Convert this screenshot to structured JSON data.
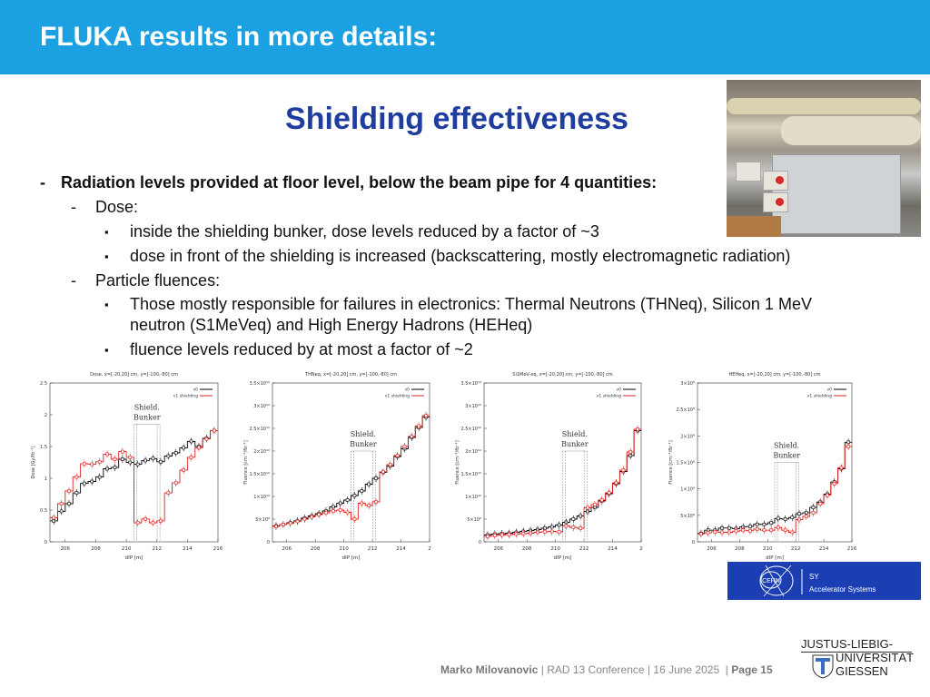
{
  "header": {
    "title": "FLUKA results in more details:",
    "color": "#1ba1e2"
  },
  "subtitle": "Shielding effectiveness",
  "bullets": [
    {
      "level": 1,
      "marker": "-",
      "text": "Radiation levels provided at floor level, below the beam pipe for 4 quantities:"
    },
    {
      "level": 2,
      "marker": "-",
      "text": "Dose:"
    },
    {
      "level": 3,
      "marker": "▪",
      "text": "inside the shielding bunker, dose levels reduced by a factor of ~3"
    },
    {
      "level": 3,
      "marker": "▪",
      "text": "dose in front of the shielding is increased (backscattering, mostly electromagnetic radiation)"
    },
    {
      "level": 2,
      "marker": "-",
      "text": "Particle fluences:"
    },
    {
      "level": 3,
      "marker": "▪",
      "text": "Those mostly responsible for failures in electronics: Thermal Neutrons (THNeq), Silicon 1 MeV"
    },
    {
      "level": 4,
      "marker": "",
      "text": "neutron (S1MeVeq) and High Energy Hadrons (HEHeq)"
    },
    {
      "level": 3,
      "marker": "▪",
      "text": "fluence levels reduced by at most a factor of ~2"
    }
  ],
  "chart_data": [
    {
      "type": "line",
      "title": "Dose, x=[-20,20] cm, y=[-100,-80] cm",
      "xlabel": "dIP [m]",
      "ylabel": "Dose [Gy/fb⁻¹]",
      "xlim": [
        205,
        216
      ],
      "ylim": [
        0,
        2.5
      ],
      "yticks": [
        0,
        0.5,
        1,
        1.5,
        2,
        2.5
      ],
      "ytick_labels": [
        "0",
        "0.5",
        "1",
        "1.5",
        "2",
        "2.5"
      ],
      "xtick_labels": [
        "206",
        "208",
        "210",
        "212",
        "214",
        "216"
      ],
      "annotation": [
        "Shield.",
        "Bunker"
      ],
      "bunker": [
        210.5,
        212.2
      ],
      "bunker_top": 1.85,
      "legend": "top-right",
      "bin_edges_start": 205,
      "bin_width": 0.5,
      "series": [
        {
          "name": "v0",
          "color": "#000000",
          "values": [
            0.33,
            0.48,
            0.6,
            0.77,
            0.92,
            0.95,
            1.02,
            1.15,
            1.17,
            1.3,
            1.25,
            1.22,
            1.28,
            1.31,
            1.26,
            1.35,
            1.4,
            1.48,
            1.58,
            1.5,
            1.63,
            1.75
          ]
        },
        {
          "name": "v1 shielding",
          "color": "#e02020",
          "values": [
            0.38,
            0.6,
            0.8,
            1.02,
            1.23,
            1.22,
            1.26,
            1.38,
            1.3,
            1.42,
            1.33,
            0.3,
            0.36,
            0.3,
            0.33,
            0.77,
            0.93,
            1.13,
            1.33,
            1.48,
            1.62,
            1.75
          ]
        }
      ]
    },
    {
      "type": "line",
      "title": "THNeq, x=[-20,20] cm, y=[-100,-80] cm",
      "xlabel": "dIP [m]",
      "ylabel": "Fluence [cm⁻²/fb⁻¹]",
      "xlim": [
        205,
        216
      ],
      "ylim": [
        0,
        35000000000.0
      ],
      "yticks": [
        0,
        5000000000.0,
        10000000000.0,
        15000000000.0,
        20000000000.0,
        25000000000.0,
        30000000000.0,
        35000000000.0
      ],
      "ytick_labels": [
        "0",
        "5×10⁹",
        "1×10¹⁰",
        "1.5×10¹⁰",
        "2×10¹⁰",
        "2.5×10¹⁰",
        "3×10¹⁰",
        "3.5×10¹⁰"
      ],
      "xtick_labels": [
        "206",
        "208",
        "210",
        "212",
        "214",
        "2"
      ],
      "annotation": [
        "Shield.",
        "Bunker"
      ],
      "bunker": [
        210.5,
        212.2
      ],
      "bunker_top": 20000000000.0,
      "legend": "top-right",
      "bin_edges_start": 205,
      "bin_width": 0.5,
      "series": [
        {
          "name": "v0",
          "color": "#000000",
          "values": [
            3500000000.0,
            3800000000.0,
            4200000000.0,
            4600000000.0,
            5200000000.0,
            5700000000.0,
            6200000000.0,
            6800000000.0,
            7700000000.0,
            8500000000.0,
            9200000000.0,
            10200000000.0,
            11200000000.0,
            12700000000.0,
            14000000000.0,
            15300000000.0,
            16700000000.0,
            18800000000.0,
            20500000000.0,
            23000000000.0,
            25200000000.0,
            27500000000.0
          ]
        },
        {
          "name": "v1 shielding",
          "color": "#e02020",
          "values": [
            3400000000.0,
            3800000000.0,
            4100000000.0,
            4500000000.0,
            5000000000.0,
            5500000000.0,
            6000000000.0,
            6400000000.0,
            6800000000.0,
            7000000000.0,
            6500000000.0,
            5000000000.0,
            8500000000.0,
            8000000000.0,
            8800000000.0,
            15400000000.0,
            17000000000.0,
            19000000000.0,
            21000000000.0,
            23200000000.0,
            25500000000.0,
            27800000000.0
          ]
        }
      ]
    },
    {
      "type": "line",
      "title": "Si1MeV-eq, x=[-20,20] cm, y=[-100,-80] cm",
      "xlabel": "dIP [m]",
      "ylabel": "Fluence [cm⁻²/fb⁻¹]",
      "xlim": [
        205,
        216
      ],
      "ylim": [
        0,
        35000000000.0
      ],
      "yticks": [
        0,
        5000000000.0,
        10000000000.0,
        15000000000.0,
        20000000000.0,
        25000000000.0,
        30000000000.0,
        35000000000.0
      ],
      "ytick_labels": [
        "0",
        "5×10⁹",
        "1×10¹⁰",
        "1.5×10¹⁰",
        "2×10¹⁰",
        "2.5×10¹⁰",
        "3×10¹⁰",
        "3.5×10¹⁰"
      ],
      "xtick_labels": [
        "206",
        "208",
        "210",
        "212",
        "214",
        "2"
      ],
      "annotation": [
        "Shield.",
        "Bunker"
      ],
      "bunker": [
        210.5,
        212.2
      ],
      "bunker_top": 20000000000.0,
      "legend": "top-right",
      "bin_edges_start": 205,
      "bin_width": 0.5,
      "series": [
        {
          "name": "v0",
          "color": "#000000",
          "values": [
            1500000000.0,
            1700000000.0,
            1800000000.0,
            1900000000.0,
            2100000000.0,
            2300000000.0,
            2500000000.0,
            2700000000.0,
            3000000000.0,
            3300000000.0,
            3700000000.0,
            4300000000.0,
            5000000000.0,
            5700000000.0,
            6700000000.0,
            7600000000.0,
            9000000000.0,
            10600000000.0,
            12800000000.0,
            15500000000.0,
            19000000000.0,
            24500000000.0
          ]
        },
        {
          "name": "v1 shielding",
          "color": "#e02020",
          "values": [
            1200000000.0,
            1400000000.0,
            1500000000.0,
            1600000000.0,
            1700000000.0,
            1800000000.0,
            1900000000.0,
            2100000000.0,
            2200000000.0,
            2300000000.0,
            2200000000.0,
            3500000000.0,
            3200000000.0,
            3000000000.0,
            7500000000.0,
            8200000000.0,
            9200000000.0,
            10800000000.0,
            13000000000.0,
            15800000000.0,
            19800000000.0,
            24800000000.0
          ]
        }
      ]
    },
    {
      "type": "line",
      "title": "HEHeq, x=[-20,20] cm, y=[-100,-80] cm",
      "xlabel": "dIP [m]",
      "ylabel": "Fluence [cm⁻²/fb⁻¹]",
      "xlim": [
        205,
        216
      ],
      "ylim": [
        0,
        3000000000.0
      ],
      "yticks": [
        0,
        500000000.0,
        1000000000.0,
        1500000000.0,
        2000000000.0,
        2500000000.0,
        3000000000.0
      ],
      "ytick_labels": [
        "0",
        "5×10⁸",
        "1×10⁹",
        "1.5×10⁹",
        "2×10⁹",
        "2.5×10⁹",
        "3×10⁹"
      ],
      "xtick_labels": [
        "206",
        "208",
        "210",
        "212",
        "214",
        "216"
      ],
      "annotation": [
        "Shield.",
        "Bunker"
      ],
      "bunker": [
        210.5,
        212.2
      ],
      "bunker_top": 1500000000.0,
      "legend": "top-right",
      "bin_edges_start": 205,
      "bin_width": 0.5,
      "series": [
        {
          "name": "v0",
          "color": "#000000",
          "values": [
            160000000.0,
            220000000.0,
            220000000.0,
            260000000.0,
            260000000.0,
            250000000.0,
            280000000.0,
            290000000.0,
            330000000.0,
            330000000.0,
            360000000.0,
            440000000.0,
            430000000.0,
            460000000.0,
            530000000.0,
            550000000.0,
            650000000.0,
            750000000.0,
            900000000.0,
            1130000000.0,
            1380000000.0,
            1880000000.0
          ]
        },
        {
          "name": "v1 shielding",
          "color": "#e02020",
          "values": [
            150000000.0,
            170000000.0,
            190000000.0,
            180000000.0,
            180000000.0,
            200000000.0,
            220000000.0,
            210000000.0,
            240000000.0,
            220000000.0,
            220000000.0,
            270000000.0,
            220000000.0,
            180000000.0,
            420000000.0,
            480000000.0,
            550000000.0,
            720000000.0,
            880000000.0,
            1100000000.0,
            1400000000.0,
            1800000000.0
          ]
        }
      ]
    }
  ],
  "cern_logo": {
    "mark": "CERN",
    "line1": "SY",
    "line2": "Accelerator Systems",
    "color": "#1b3fb3"
  },
  "university_logo": {
    "line1": "JUSTUS-LIEBIG-",
    "line2": "UNIVERSITÄT",
    "line3": "GIESSEN"
  },
  "footer": {
    "author": "Marko Milovanovic",
    "separator": "|",
    "conference": "RAD 13 Conference",
    "date": "16 June 2025",
    "page": "Page 15"
  }
}
